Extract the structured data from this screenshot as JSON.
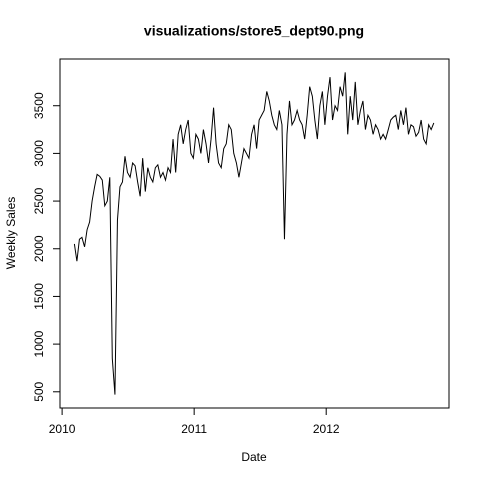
{
  "chart_data": {
    "type": "line",
    "title": "visualizations/store5_dept90.png",
    "x_label": "Date",
    "y_label": "Weekly Sales",
    "x": [
      2010.093,
      2010.112,
      2010.131,
      2010.15,
      2010.17,
      2010.189,
      2010.208,
      2010.227,
      2010.246,
      2010.265,
      2010.285,
      2010.304,
      2010.323,
      2010.342,
      2010.361,
      2010.38,
      2010.4,
      2010.419,
      2010.438,
      2010.457,
      2010.476,
      2010.495,
      2010.515,
      2010.534,
      2010.553,
      2010.572,
      2010.591,
      2010.61,
      2010.63,
      2010.649,
      2010.668,
      2010.687,
      2010.706,
      2010.725,
      2010.745,
      2010.764,
      2010.783,
      2010.802,
      2010.821,
      2010.84,
      2010.86,
      2010.879,
      2010.898,
      2010.917,
      2010.936,
      2010.955,
      2010.975,
      2010.994,
      2011.013,
      2011.032,
      2011.051,
      2011.07,
      2011.09,
      2011.109,
      2011.128,
      2011.147,
      2011.166,
      2011.185,
      2011.205,
      2011.224,
      2011.243,
      2011.262,
      2011.281,
      2011.3,
      2011.32,
      2011.339,
      2011.358,
      2011.377,
      2011.396,
      2011.415,
      2011.435,
      2011.454,
      2011.473,
      2011.492,
      2011.511,
      2011.53,
      2011.55,
      2011.569,
      2011.588,
      2011.607,
      2011.626,
      2011.645,
      2011.665,
      2011.684,
      2011.703,
      2011.722,
      2011.741,
      2011.76,
      2011.78,
      2011.799,
      2011.818,
      2011.837,
      2011.856,
      2011.875,
      2011.895,
      2011.914,
      2011.933,
      2011.952,
      2011.971,
      2011.99,
      2012.01,
      2012.029,
      2012.048,
      2012.067,
      2012.086,
      2012.105,
      2012.125,
      2012.144,
      2012.163,
      2012.182,
      2012.201,
      2012.22,
      2012.24,
      2012.259,
      2012.278,
      2012.297,
      2012.316,
      2012.335,
      2012.355,
      2012.374,
      2012.393,
      2012.412,
      2012.431,
      2012.45,
      2012.47,
      2012.489,
      2012.508,
      2012.527,
      2012.546,
      2012.565,
      2012.585,
      2012.604,
      2012.623,
      2012.642,
      2012.661,
      2012.68,
      2012.7,
      2012.719,
      2012.738,
      2012.757,
      2012.776,
      2012.795,
      2012.815
    ],
    "values": [
      2050,
      1870,
      2100,
      2120,
      2020,
      2200,
      2280,
      2500,
      2650,
      2780,
      2760,
      2720,
      2450,
      2500,
      2750,
      850,
      470,
      2300,
      2650,
      2700,
      2970,
      2800,
      2750,
      2900,
      2870,
      2700,
      2550,
      2950,
      2600,
      2850,
      2750,
      2700,
      2850,
      2880,
      2750,
      2800,
      2720,
      2850,
      2800,
      3150,
      2800,
      3200,
      3300,
      3100,
      3250,
      3350,
      3000,
      2950,
      3200,
      3150,
      3000,
      3250,
      3100,
      2900,
      3150,
      3480,
      3100,
      2900,
      2850,
      3050,
      3100,
      3300,
      3250,
      3000,
      2900,
      2750,
      2900,
      3050,
      3000,
      2950,
      3200,
      3300,
      3050,
      3350,
      3400,
      3450,
      3650,
      3550,
      3400,
      3300,
      3250,
      3450,
      3300,
      2100,
      3200,
      3550,
      3300,
      3350,
      3450,
      3350,
      3300,
      3150,
      3400,
      3700,
      3600,
      3350,
      3150,
      3500,
      3650,
      3300,
      3600,
      3800,
      3350,
      3500,
      3450,
      3700,
      3600,
      3850,
      3200,
      3600,
      3350,
      3750,
      3300,
      3450,
      3550,
      3250,
      3400,
      3350,
      3200,
      3300,
      3250,
      3150,
      3200,
      3150,
      3250,
      3350,
      3380,
      3400,
      3250,
      3450,
      3300,
      3480,
      3200,
      3300,
      3280,
      3180,
      3220,
      3350,
      3150,
      3100,
      3300,
      3250,
      3320
    ],
    "color": "#000000",
    "xlim": [
      2009.984,
      2012.93
    ],
    "ylim": [
      330,
      3990
    ],
    "xticks": [
      2010,
      2011,
      2012
    ],
    "yticks": [
      500,
      1000,
      1500,
      2000,
      2500,
      3000,
      3500
    ]
  }
}
